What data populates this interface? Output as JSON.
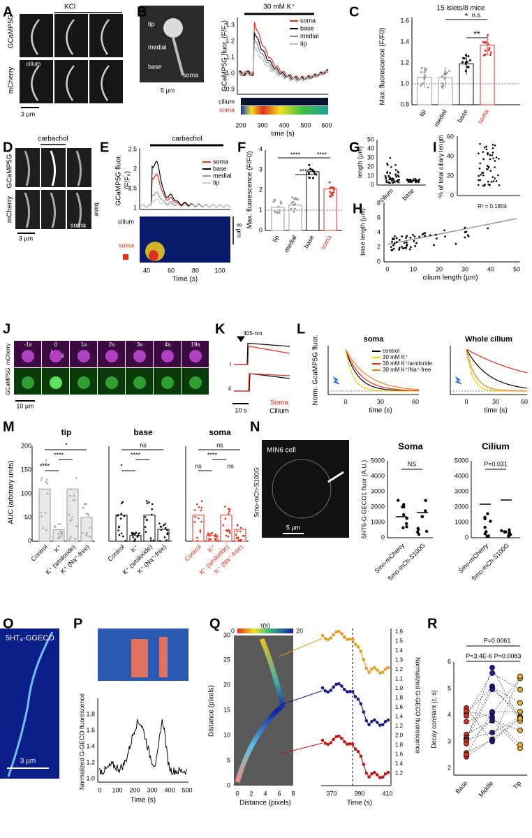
{
  "panels": {
    "A": {
      "texts": [
        "A",
        "KCl",
        "GCaMP5G",
        "mCherry",
        "cilium",
        "3 µm"
      ]
    },
    "B": {
      "texts": [
        "B",
        "30 mM K⁺",
        "tip",
        "medial",
        "base",
        "soma",
        "5 µm",
        "GCaMP5G fluor. (F/F₀)",
        "soma",
        "base",
        "medial",
        "tip",
        "0.9",
        "1.0",
        "1.1",
        "1.2",
        "1.3",
        "cilium",
        "soma",
        "200",
        "300",
        "400",
        "500",
        "600",
        "time (s)"
      ]
    },
    "C": {
      "texts": [
        "C",
        "15 islets/8 mice",
        "Max. fluorescence (F/F0)",
        "0.8",
        "1.0",
        "1.2",
        "1.4",
        "1.6",
        "tip",
        "medial",
        "base",
        "soma",
        "*",
        "**",
        "n.s."
      ]
    },
    "D": {
      "texts": [
        "D",
        "carbachol",
        "GCaMP5G",
        "mCherry",
        "soma",
        "base",
        "3 µm"
      ]
    },
    "E": {
      "texts": [
        "E",
        "carbachol",
        "GCaMP5G fluor.",
        "(F/F₀)",
        "soma",
        "base",
        "medial",
        "tip",
        "1",
        "1.5",
        "2",
        "2.5",
        "cilium",
        "soma",
        "8 µm",
        "40",
        "60",
        "80",
        "100",
        "Time (s)"
      ]
    },
    "F": {
      "texts": [
        "F",
        "Max. fluorescence (F/F0)",
        "0",
        "1",
        "2",
        "3",
        "4",
        "tip",
        "medial",
        "base",
        "soma",
        "****",
        "****",
        "****"
      ]
    },
    "G": {
      "texts": [
        "G",
        "length (µm)",
        "0",
        "10",
        "20",
        "30",
        "40",
        "50",
        "cilium",
        "base"
      ]
    },
    "I": {
      "texts": [
        "I",
        "% of total ciliary length",
        "0",
        "20",
        "40",
        "60"
      ]
    },
    "H": {
      "texts": [
        "H",
        "base length (µm)",
        "cilium length (µm)",
        "R² = 0.1804",
        "0",
        "2",
        "4",
        "6",
        "8",
        "0",
        "10",
        "20",
        "30",
        "40",
        "50"
      ]
    },
    "J": {
      "texts": [
        "J",
        "-1s",
        "0",
        "1s",
        "2s",
        "3s",
        "4s",
        "19s",
        "mCherry",
        "GCaMP5G",
        "10 µm",
        "i",
        "ii"
      ]
    },
    "K": {
      "texts": [
        "K",
        "405-nm",
        "i",
        "ii",
        "Soma",
        "Cilium",
        "10 s"
      ]
    },
    "L": {
      "texts": [
        "L",
        "Norm. GcaMP5G fluor.",
        "soma",
        "Whole cilium",
        "control",
        "30 mM K⁺",
        "30 mM K⁺/amiloride",
        "30 mM K⁺/Na⁺-free",
        "0",
        "30",
        "60",
        "time (s)",
        "0",
        "30",
        "60",
        "time (s)"
      ]
    },
    "M": {
      "texts": [
        "M",
        "tip",
        "base",
        "soma",
        "AUC (arbitrary units)",
        "0",
        "50",
        "100",
        "150",
        "200",
        "Control",
        "K⁺",
        "K⁺ (amiloride)",
        "K⁺ (Na⁺-free)",
        "Control",
        "K⁺",
        "K⁺ (amiloride)",
        "K⁺ (Na⁺-free)",
        "Control",
        "K⁺",
        "K⁺ (amiloride)",
        "K⁺ (Na⁺-free)",
        "****",
        "****",
        "*",
        "*",
        "****",
        "ns",
        "ns",
        "****",
        "ns",
        "ns"
      ]
    },
    "N": {
      "texts": [
        "N",
        "MIN6 cell",
        "Smo-mCh-S100G",
        "5 µm",
        "Soma",
        "Cilium",
        "5HT6-G-GECO1 fluor (A.U.)",
        "0",
        "1000",
        "2000",
        "3000",
        "4000",
        "5000",
        "0",
        "1000",
        "2000",
        "3000",
        "4000",
        "5000",
        "NS",
        "P=0.031",
        "Smo-mCherry",
        "Smo-mCh-S100G",
        "Smo-mCherry",
        "Smo-mCh-S100G"
      ]
    },
    "O": {
      "texts": [
        "O",
        "5HT₆-GGECO",
        "3 µm"
      ]
    },
    "P": {
      "texts": [
        "P",
        "Normalized G-GECO fluorescence",
        "1.0",
        "1.2",
        "1.4",
        "1.6",
        "1.8",
        "0",
        "100",
        "200",
        "300",
        "400",
        "500",
        "Time (s)"
      ]
    },
    "Q": {
      "texts": [
        "Q",
        "τ(s)",
        "0",
        "20",
        "Distance (pixels)",
        "0",
        "5",
        "10",
        "15",
        "20",
        "25",
        "30",
        "0",
        "2",
        "4",
        "6",
        "8",
        "Distance (pixels)",
        "1.6",
        "1.5",
        "1.4",
        "1.3",
        "1.2",
        "1.1",
        "1.0",
        "1.8",
        "1.6",
        "1.4",
        "1.2",
        "2.0",
        "1.8",
        "1.6",
        "1.4",
        "1.2",
        "Normalized G-GECO fluorescence",
        "370",
        "390",
        "410",
        "Time (s)"
      ]
    },
    "R": {
      "texts": [
        "R",
        "P=0.0061",
        "P=3.4E-6",
        "P=0.0083",
        "Decay constant (τ, s)",
        "2",
        "3",
        "4",
        "5",
        "6",
        "Base",
        "Middle",
        "Tip"
      ]
    }
  }
}
